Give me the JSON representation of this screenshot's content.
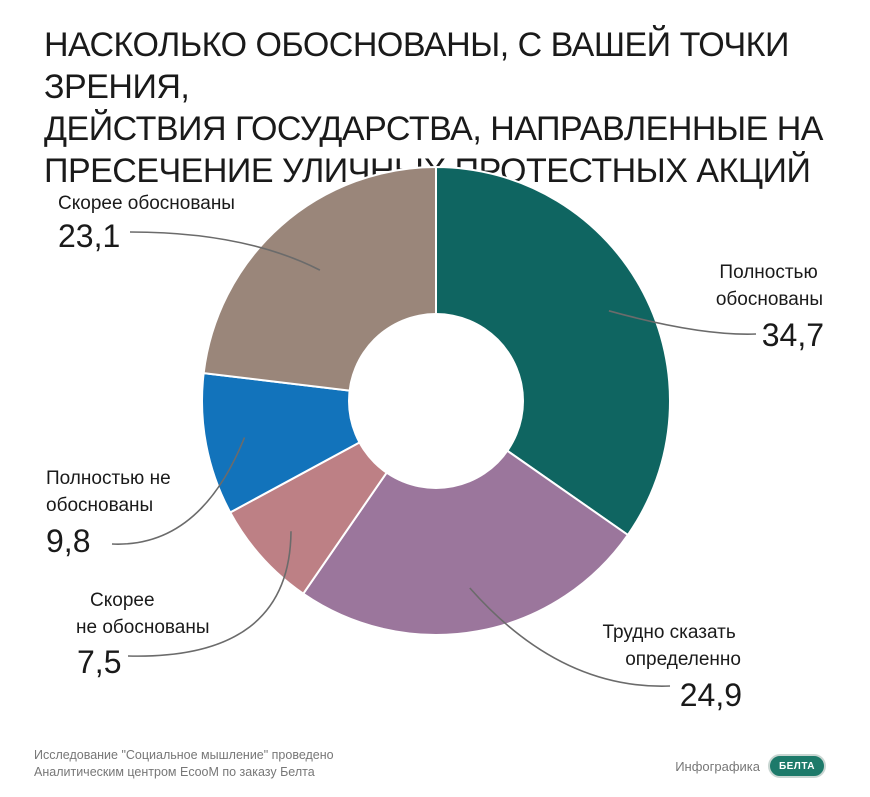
{
  "title_lines": [
    "НАСКОЛЬКО ОБОСНОВАНЫ, С ВАШЕЙ ТОЧКИ ЗРЕНИЯ,",
    "ДЕЙСТВИЯ ГОСУДАРСТВА, НАПРАВЛЕННЫЕ НА",
    "ПРЕСЕЧЕНИЕ УЛИЧНЫХ ПРОТЕСТНЫХ АКЦИЙ"
  ],
  "chart_data": {
    "type": "pie",
    "variant": "donut",
    "start_angle_deg": 0,
    "direction": "clockwise",
    "slices": [
      {
        "label_lines": [
          "Полностью",
          "обоснованы"
        ],
        "value": 34.7,
        "value_text": "34,7",
        "color": "#0f6561"
      },
      {
        "label_lines": [
          "Трудно сказать",
          "определенно"
        ],
        "value": 24.9,
        "value_text": "24,9",
        "color": "#9b769c"
      },
      {
        "label_lines": [
          "Скорее",
          "не обоснованы"
        ],
        "value": 7.5,
        "value_text": "7,5",
        "color": "#bd8085"
      },
      {
        "label_lines": [
          "Полностью не",
          "обоснованы"
        ],
        "value": 9.8,
        "value_text": "9,8",
        "color": "#1273bb"
      },
      {
        "label_lines": [
          "Скорее обоснованы"
        ],
        "value": 23.1,
        "value_text": "23,1",
        "color": "#9a867a"
      }
    ]
  },
  "footer_lines": [
    "Исследование \"Социальное мышление\" проведено",
    "Аналитическим центром EcooM по заказу Белта"
  ],
  "credit": "Инфографика",
  "logo_text": "БЕЛТА"
}
